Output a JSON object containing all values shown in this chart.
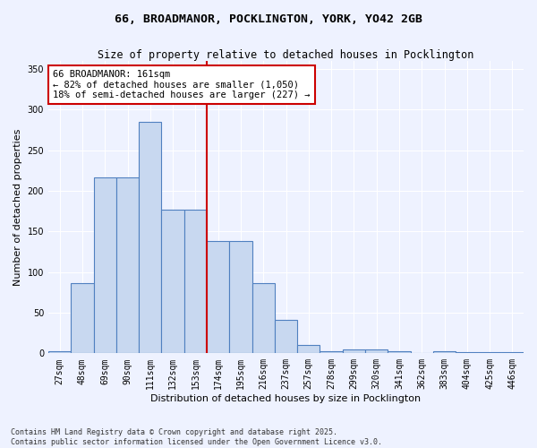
{
  "title_line1": "66, BROADMANOR, POCKLINGTON, YORK, YO42 2GB",
  "title_line2": "Size of property relative to detached houses in Pocklington",
  "xlabel": "Distribution of detached houses by size in Pocklington",
  "ylabel": "Number of detached properties",
  "categories": [
    "27sqm",
    "48sqm",
    "69sqm",
    "90sqm",
    "111sqm",
    "132sqm",
    "153sqm",
    "174sqm",
    "195sqm",
    "216sqm",
    "237sqm",
    "257sqm",
    "278sqm",
    "299sqm",
    "320sqm",
    "341sqm",
    "362sqm",
    "383sqm",
    "404sqm",
    "425sqm",
    "446sqm"
  ],
  "values": [
    3,
    86,
    217,
    217,
    285,
    177,
    177,
    138,
    138,
    86,
    41,
    10,
    3,
    5,
    5,
    3,
    0,
    3,
    2,
    2,
    1
  ],
  "bar_color": "#c8d8f0",
  "bar_edge_color": "#5080c0",
  "bar_edge_width": 0.8,
  "vline_x": 6.5,
  "vline_color": "#cc0000",
  "ylim": [
    0,
    360
  ],
  "yticks": [
    0,
    50,
    100,
    150,
    200,
    250,
    300,
    350
  ],
  "annotation_text": "66 BROADMANOR: 161sqm\n← 82% of detached houses are smaller (1,050)\n18% of semi-detached houses are larger (227) →",
  "annotation_box_color": "#cc0000",
  "annotation_bg": "white",
  "footer": "Contains HM Land Registry data © Crown copyright and database right 2025.\nContains public sector information licensed under the Open Government Licence v3.0.",
  "bg_color": "#eef2ff",
  "grid_color": "#ffffff",
  "title_fontsize": 9.5,
  "subtitle_fontsize": 8.5,
  "axis_label_fontsize": 8,
  "tick_fontsize": 7,
  "annotation_fontsize": 7.5,
  "footer_fontsize": 6
}
